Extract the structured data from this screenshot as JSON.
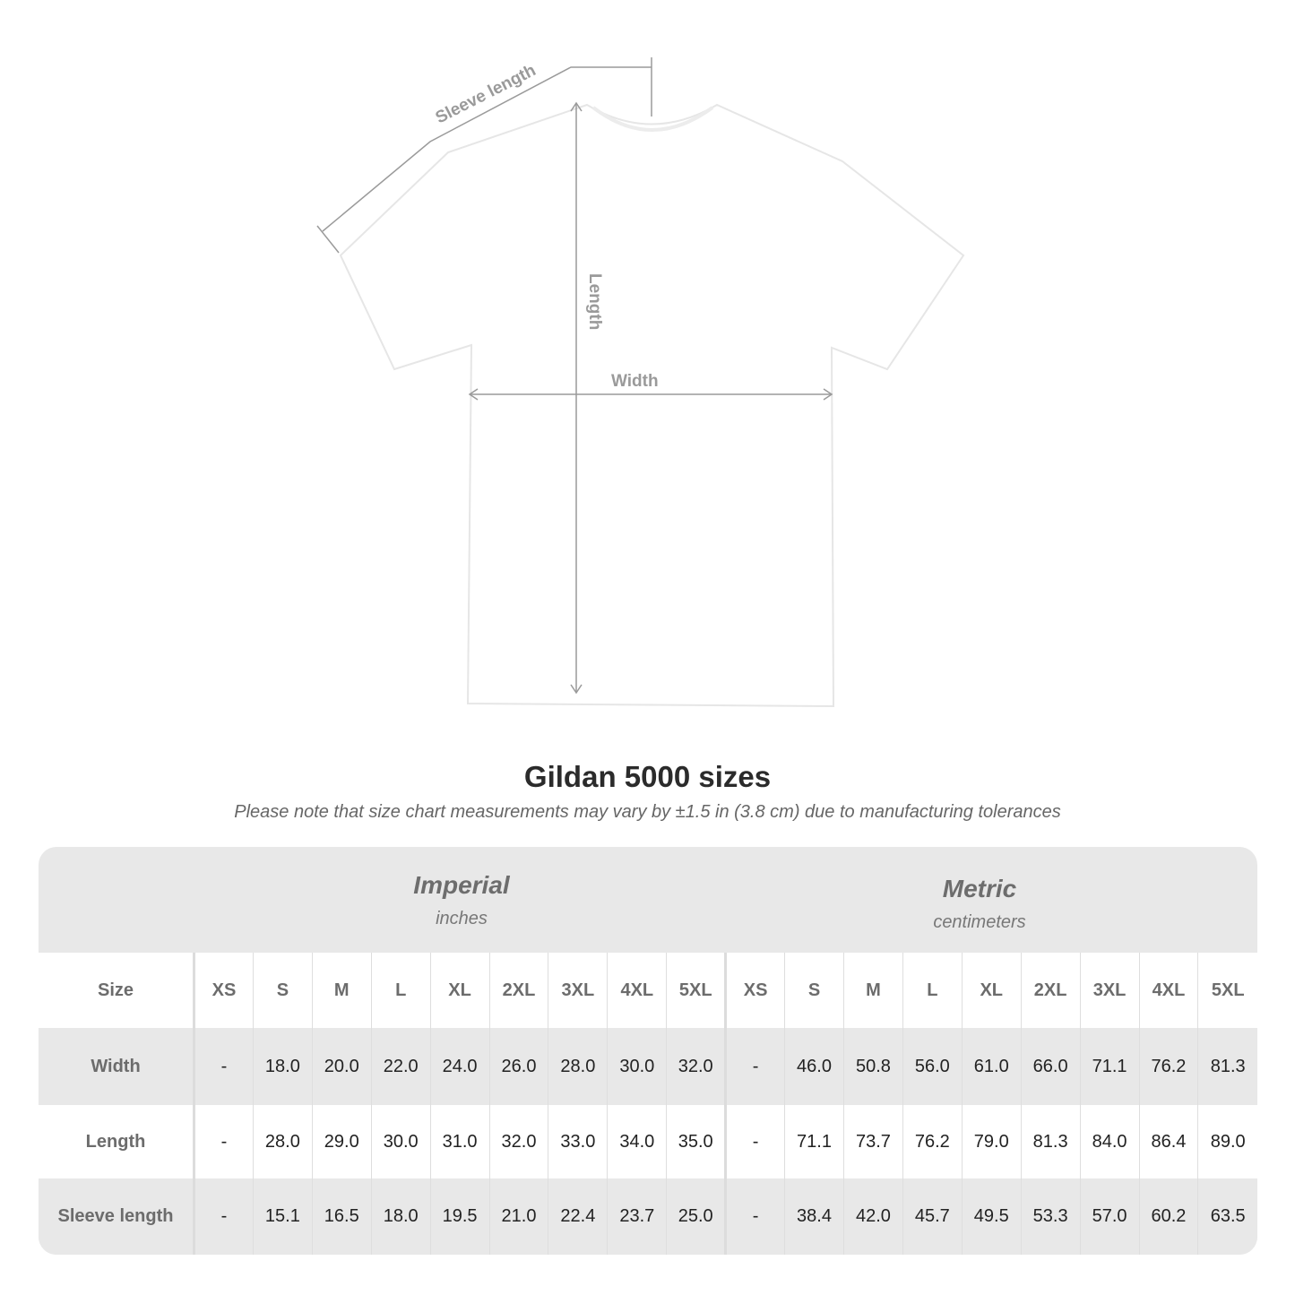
{
  "diagram": {
    "labels": {
      "sleeve": "Sleeve length",
      "length": "Length",
      "width": "Width"
    },
    "colors": {
      "measure_lines": "#9a9a9a",
      "shirt": "#ffffff"
    }
  },
  "title": "Gildan 5000 sizes",
  "subtitle": "Please note that size chart measurements may vary by ±1.5 in (3.8 cm) due to manufacturing tolerances",
  "imperial": {
    "name": "Imperial",
    "unit": "inches"
  },
  "metric": {
    "name": "Metric",
    "unit": "centimeters"
  },
  "table": {
    "size_label": "Size",
    "sizes": [
      "XS",
      "S",
      "M",
      "L",
      "XL",
      "2XL",
      "3XL",
      "4XL",
      "5XL"
    ],
    "rows": [
      {
        "label": "Width",
        "imperial": [
          "-",
          "18.0",
          "20.0",
          "22.0",
          "24.0",
          "26.0",
          "28.0",
          "30.0",
          "32.0"
        ],
        "metric": [
          "-",
          "46.0",
          "50.8",
          "56.0",
          "61.0",
          "66.0",
          "71.1",
          "76.2",
          "81.3"
        ]
      },
      {
        "label": "Length",
        "imperial": [
          "-",
          "28.0",
          "29.0",
          "30.0",
          "31.0",
          "32.0",
          "33.0",
          "34.0",
          "35.0"
        ],
        "metric": [
          "-",
          "71.1",
          "73.7",
          "76.2",
          "79.0",
          "81.3",
          "84.0",
          "86.4",
          "89.0"
        ]
      },
      {
        "label": "Sleeve length",
        "imperial": [
          "-",
          "15.1",
          "16.5",
          "18.0",
          "19.5",
          "21.0",
          "22.4",
          "23.7",
          "25.0"
        ],
        "metric": [
          "-",
          "38.4",
          "42.0",
          "45.7",
          "49.5",
          "53.3",
          "57.0",
          "60.2",
          "63.5"
        ]
      }
    ]
  }
}
